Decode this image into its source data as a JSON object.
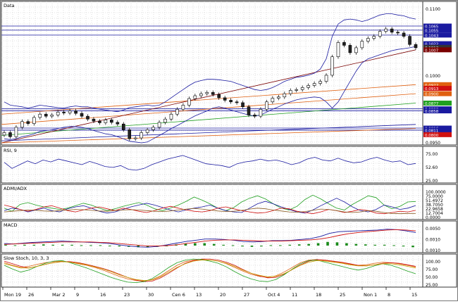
{
  "chart_data": [
    {
      "panel": "price",
      "type": "candlestick",
      "title": "Data",
      "y_axis_labels": [
        "0.1100",
        "0.1000",
        "0.0950"
      ],
      "price_tags": [
        {
          "value": "0.1065",
          "color": "#1a1aa0"
        },
        {
          "value": "0.1055",
          "color": "#1a1aa0"
        },
        {
          "value": "0.1043",
          "color": "#1a1aa0"
        },
        {
          "value": "0.1022",
          "color": "#1a1aa0"
        },
        {
          "value": "0.1013",
          "color": "#333333"
        },
        {
          "value": "0.1007",
          "color": "#7a0000"
        },
        {
          "value": "0.0922",
          "color": "#e06010"
        },
        {
          "value": "0.0913",
          "color": "#d01010"
        },
        {
          "value": "0.0900",
          "color": "#e06010"
        },
        {
          "value": "0.0877",
          "color": "#20a020"
        },
        {
          "value": "0.0863",
          "color": "#1a1aa0"
        },
        {
          "value": "0.0858",
          "color": "#1a1aa0"
        },
        {
          "value": "0.0816",
          "color": "#1a1aa0"
        },
        {
          "value": "0.0811",
          "color": "#1a1aa0"
        },
        {
          "value": "0.0800",
          "color": "#d01010"
        }
      ],
      "horizontal_lines": [
        0.1065,
        0.1055,
        0.1043,
        0.0863,
        0.0858,
        0.0816,
        0.0811
      ],
      "ylim": [
        0.078,
        0.112
      ],
      "candles_close": [
        0.0805,
        0.0795,
        0.0818,
        0.0832,
        0.0827,
        0.0842,
        0.085,
        0.0845,
        0.0848,
        0.0855,
        0.0853,
        0.0858,
        0.0852,
        0.0845,
        0.0838,
        0.0833,
        0.0829,
        0.0836,
        0.083,
        0.0826,
        0.0812,
        0.079,
        0.0792,
        0.0805,
        0.0812,
        0.0818,
        0.083,
        0.0838,
        0.085,
        0.0862,
        0.0872,
        0.0888,
        0.0895,
        0.09,
        0.0903,
        0.0898,
        0.089,
        0.0884,
        0.088,
        0.0878,
        0.0868,
        0.0848,
        0.0845,
        0.0862,
        0.088,
        0.0889,
        0.0892,
        0.09,
        0.0908,
        0.091,
        0.0915,
        0.092,
        0.0925,
        0.093,
        0.0945,
        0.099,
        0.1025,
        0.1018,
        0.1,
        0.1012,
        0.1028,
        0.1035,
        0.104,
        0.1052,
        0.1058,
        0.105,
        0.1048,
        0.104,
        0.102,
        0.1012
      ],
      "bands": {
        "upper": [
          0.088,
          0.0872,
          0.087,
          0.0868,
          0.0865,
          0.0868,
          0.0872,
          0.087,
          0.0868,
          0.0866,
          0.0865,
          0.0868,
          0.087,
          0.0868,
          0.0868,
          0.0865,
          0.0862,
          0.086,
          0.0858,
          0.0856,
          0.086,
          0.0866,
          0.0868,
          0.087,
          0.0872,
          0.087,
          0.0872,
          0.088,
          0.089,
          0.09,
          0.091,
          0.092,
          0.0928,
          0.0932,
          0.0935,
          0.0935,
          0.0934,
          0.0932,
          0.093,
          0.0925,
          0.092,
          0.0915,
          0.091,
          0.0908,
          0.091,
          0.0915,
          0.0922,
          0.093,
          0.0935,
          0.094,
          0.0942,
          0.0945,
          0.095,
          0.096,
          0.0985,
          0.104,
          0.107,
          0.108,
          0.1082,
          0.108,
          0.1076,
          0.108,
          0.1086,
          0.1092,
          0.1095,
          0.1095,
          0.1092,
          0.109,
          0.1085,
          0.1082
        ],
        "lower": [
          0.079,
          0.0788,
          0.079,
          0.0795,
          0.0798,
          0.0802,
          0.0808,
          0.081,
          0.0812,
          0.0815,
          0.0818,
          0.082,
          0.082,
          0.0818,
          0.0815,
          0.081,
          0.0806,
          0.0802,
          0.08,
          0.0795,
          0.079,
          0.0784,
          0.0782,
          0.078,
          0.0782,
          0.079,
          0.0798,
          0.0806,
          0.0815,
          0.0822,
          0.083,
          0.0838,
          0.0846,
          0.0852,
          0.0858,
          0.0865,
          0.0868,
          0.0865,
          0.086,
          0.0856,
          0.0852,
          0.0848,
          0.0845,
          0.0848,
          0.0855,
          0.0862,
          0.0868,
          0.0875,
          0.088,
          0.0885,
          0.0888,
          0.089,
          0.0892,
          0.089,
          0.088,
          0.0865,
          0.088,
          0.0905,
          0.093,
          0.0955,
          0.0975,
          0.0985,
          0.099,
          0.0995,
          0.1,
          0.1005,
          0.1008,
          0.101,
          0.1012,
          0.1015
        ]
      },
      "trendlines": [
        {
          "color": "#e06010",
          "from": 0.085,
          "to": 0.0922
        },
        {
          "color": "#e06010",
          "from": 0.0825,
          "to": 0.09
        },
        {
          "color": "#20a020",
          "from": 0.0798,
          "to": 0.0877
        },
        {
          "color": "#7a0000",
          "from": 0.078,
          "to": 0.1007
        },
        {
          "color": "#1a1aa0",
          "from": 0.0785,
          "to": 0.0825
        },
        {
          "color": "#e06010",
          "from": 0.078,
          "to": 0.0815
        }
      ]
    },
    {
      "panel": "rsi",
      "type": "line",
      "title": "RSI, 9",
      "y_axis_labels": [
        "75.00",
        "52.60",
        "25.00"
      ],
      "ylim": [
        15,
        85
      ],
      "series": [
        {
          "color": "#1a1aa0",
          "values": [
            55,
            42,
            50,
            58,
            52,
            60,
            56,
            62,
            58,
            54,
            50,
            57,
            52,
            46,
            44,
            48,
            40,
            38,
            42,
            50,
            56,
            62,
            66,
            70,
            64,
            58,
            52,
            50,
            48,
            44,
            52,
            56,
            58,
            62,
            58,
            60,
            56,
            50,
            54,
            62,
            66,
            60,
            58,
            64,
            58,
            54,
            56,
            62,
            66,
            60,
            56,
            58,
            50,
            52.6
          ]
        }
      ]
    },
    {
      "panel": "dmi",
      "type": "line",
      "title": "ADMI/ADX",
      "y_axis_labels": [
        "100.0000",
        "75.0000",
        "51.4972",
        "38.7050",
        "22.9658",
        "12.7004",
        "0.0000"
      ],
      "ylim": [
        0,
        100
      ],
      "series": [
        {
          "color": "#20a020",
          "values": [
            30,
            20,
            42,
            48,
            40,
            34,
            30,
            26,
            30,
            38,
            46,
            40,
            30,
            22,
            28,
            36,
            42,
            48,
            40,
            28,
            22,
            30,
            40,
            52,
            66,
            56,
            44,
            30,
            22,
            32,
            50,
            62,
            70,
            60,
            44,
            30,
            24,
            36,
            58,
            72,
            60,
            44,
            30,
            24,
            42,
            56,
            70,
            64,
            40,
            28,
            36,
            50,
            51.5
          ]
        },
        {
          "color": "#1a1aa0",
          "values": [
            22,
            30,
            26,
            18,
            24,
            30,
            22,
            18,
            28,
            34,
            38,
            30,
            20,
            14,
            18,
            26,
            34,
            40,
            46,
            40,
            32,
            24,
            18,
            24,
            30,
            34,
            40,
            30,
            22,
            18,
            16,
            30,
            44,
            52,
            44,
            34,
            26,
            18,
            14,
            24,
            38,
            50,
            62,
            50,
            34,
            22,
            18,
            26,
            40,
            34,
            26,
            30,
            38.7
          ]
        },
        {
          "color": "#d01010",
          "values": [
            40,
            34,
            26,
            20,
            26,
            34,
            38,
            30,
            22,
            18,
            24,
            30,
            34,
            28,
            22,
            30,
            26,
            20,
            16,
            22,
            30,
            36,
            30,
            24,
            20,
            18,
            22,
            30,
            34,
            28,
            22,
            18,
            14,
            16,
            22,
            30,
            28,
            20,
            16,
            12,
            18,
            26,
            22,
            16,
            20,
            26,
            22,
            14,
            12,
            16,
            20,
            18,
            22.97
          ]
        },
        {
          "color": "#8a5a20",
          "values": [
            18,
            20,
            22,
            24,
            23,
            21,
            20,
            22,
            24,
            26,
            25,
            23,
            21,
            20,
            22,
            24,
            25,
            24,
            22,
            20,
            19,
            21,
            24,
            27,
            29,
            27,
            24,
            21,
            19,
            20,
            23,
            27,
            30,
            28,
            24,
            21,
            18,
            17,
            19,
            23,
            27,
            26,
            22,
            18,
            16,
            18,
            22,
            20,
            16,
            13,
            12,
            13,
            12.7
          ]
        }
      ]
    },
    {
      "panel": "macd",
      "type": "bar_line",
      "title": "MACD",
      "y_axis_labels": [
        "0.0050",
        "0.0010",
        "0.0010"
      ],
      "ylim": [
        -0.0012,
        0.0055
      ],
      "series": [
        {
          "color": "#1a1aa0",
          "values": [
            0.0005,
            0.0004,
            0.0006,
            0.0008,
            0.0009,
            0.001,
            0.0011,
            0.001,
            0.0009,
            0.0008,
            0.0007,
            0.0005,
            0.0002,
            -0.0001,
            -0.0003,
            -0.0004,
            -0.0002,
            0.0002,
            0.0006,
            0.001,
            0.0013,
            0.0016,
            0.0016,
            0.0015,
            0.0013,
            0.001,
            0.0009,
            0.001,
            0.0012,
            0.0012,
            0.0013,
            0.0015,
            0.0017,
            0.0022,
            0.003,
            0.0034,
            0.0035,
            0.0036,
            0.0037,
            0.0038,
            0.004,
            0.0039,
            0.0036,
            0.0032
          ]
        },
        {
          "color": "#d01010",
          "values": [
            0.0003,
            0.0004,
            0.0005,
            0.0006,
            0.0007,
            0.0008,
            0.0009,
            0.0009,
            0.0009,
            0.0009,
            0.0008,
            0.0007,
            0.0005,
            0.0003,
            0.0001,
            -0.0001,
            -0.0001,
            0.0,
            0.0002,
            0.0005,
            0.0008,
            0.0011,
            0.0013,
            0.0014,
            0.0014,
            0.0013,
            0.0012,
            0.0011,
            0.0011,
            0.0011,
            0.0012,
            0.0013,
            0.0014,
            0.0016,
            0.002,
            0.0025,
            0.0029,
            0.0032,
            0.0034,
            0.0036,
            0.0038,
            0.0039,
            0.0038,
            0.0036
          ]
        }
      ],
      "histogram": [
        0.0002,
        0.0001,
        0.0002,
        0.0002,
        0.0003,
        0.0002,
        0.0002,
        0.0002,
        0.0001,
        0.0001,
        0.0001,
        -0.0001,
        -0.0002,
        -0.0003,
        -0.0004,
        -0.0004,
        -0.0003,
        -0.0001,
        0.0003,
        0.0005,
        0.0006,
        0.0006,
        0.0004,
        0.0002,
        0.0001,
        -0.0002,
        -0.0003,
        -0.0002,
        0.0001,
        0.0001,
        0.0002,
        0.0003,
        0.0004,
        0.0006,
        0.0009,
        0.0008,
        0.0006,
        0.0004,
        0.0003,
        0.0002,
        0.0002,
        0.0001,
        -0.0002,
        -0.0004
      ]
    },
    {
      "panel": "stoch",
      "type": "line",
      "title": "Slow Stoch, 10, 3, 3",
      "y_axis_labels": [
        "100.00",
        "75.00",
        "50.00",
        "25.00"
      ],
      "ylim": [
        -5,
        105
      ],
      "series": [
        {
          "color": "#e06010",
          "values": [
            80,
            70,
            62,
            66,
            74,
            80,
            84,
            86,
            82,
            76,
            70,
            62,
            52,
            40,
            28,
            18,
            12,
            10,
            16,
            30,
            50,
            70,
            84,
            90,
            92,
            90,
            86,
            76,
            62,
            48,
            36,
            28,
            24,
            30,
            44,
            62,
            80,
            90,
            92,
            88,
            84,
            80,
            74,
            70,
            72,
            78,
            82,
            80,
            76,
            70,
            64
          ]
        },
        {
          "color": "#d01010",
          "values": [
            86,
            76,
            66,
            60,
            66,
            74,
            80,
            84,
            84,
            80,
            74,
            66,
            58,
            48,
            36,
            24,
            14,
            8,
            10,
            22,
            40,
            60,
            78,
            88,
            94,
            94,
            90,
            82,
            70,
            54,
            40,
            30,
            22,
            24,
            36,
            54,
            72,
            86,
            92,
            90,
            86,
            82,
            76,
            70,
            68,
            72,
            78,
            80,
            78,
            72,
            66
          ]
        },
        {
          "color": "#20a020",
          "values": [
            70,
            56,
            44,
            52,
            66,
            78,
            86,
            88,
            80,
            70,
            60,
            48,
            36,
            24,
            14,
            6,
            4,
            8,
            20,
            40,
            62,
            80,
            90,
            94,
            92,
            86,
            78,
            64,
            46,
            30,
            18,
            10,
            8,
            16,
            34,
            56,
            76,
            88,
            90,
            82,
            74,
            66,
            58,
            52,
            58,
            68,
            76,
            70,
            60,
            48,
            38
          ]
        },
        {
          "color": "#c8a000",
          "values": [
            76,
            68,
            60,
            60,
            66,
            74,
            80,
            84,
            82,
            78,
            72,
            64,
            56,
            46,
            34,
            24,
            16,
            12,
            14,
            26,
            44,
            62,
            76,
            86,
            90,
            90,
            86,
            78,
            66,
            52,
            40,
            32,
            26,
            28,
            38,
            54,
            70,
            82,
            88,
            86,
            82,
            78,
            72,
            68,
            68,
            72,
            76,
            76,
            72,
            66,
            60
          ]
        }
      ]
    }
  ],
  "x_axis": {
    "labels": [
      "Mon 19",
      "26",
      "Mar 2",
      "9",
      "16",
      "23",
      "30",
      "Cen 6",
      "13",
      "20",
      "27",
      "Oct 4",
      "11",
      "18",
      "25",
      "Non 1",
      "8",
      "15"
    ]
  }
}
